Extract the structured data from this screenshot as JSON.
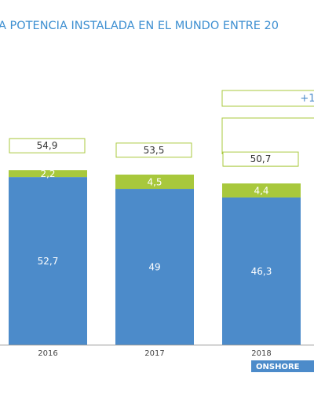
{
  "chart_data": {
    "type": "bar",
    "stacked": true,
    "title": "A POTENCIA INSTALADA EN EL MUNDO ENTRE 20",
    "annotation": "+1",
    "categories": [
      "2016",
      "2017",
      "2018"
    ],
    "series": [
      {
        "name": "ONSHORE",
        "color": "#4c8bca",
        "values": [
          52.7,
          49,
          46.3
        ],
        "value_labels": [
          "52,7",
          "49",
          "46,3"
        ]
      },
      {
        "color": "#a8c83c",
        "values": [
          2.2,
          4.5,
          4.4
        ],
        "value_labels": [
          "2,2",
          "4,5",
          "4,4"
        ]
      }
    ],
    "totals": {
      "values": [
        54.9,
        53.5,
        50.7
      ],
      "value_labels": [
        "54,9",
        "53,5",
        "50,7"
      ],
      "color": "#a8c83c"
    }
  }
}
